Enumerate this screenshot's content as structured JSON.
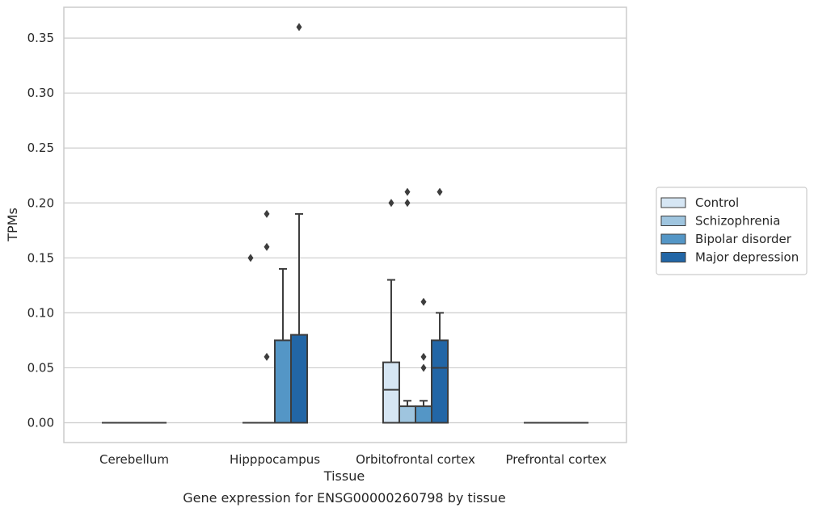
{
  "chart_data": {
    "type": "box",
    "title": "",
    "caption": "Gene expression for ENSG00000260798 by tissue",
    "xlabel": "Tissue",
    "ylabel": "TPMs",
    "ylim": [
      -0.018,
      0.378
    ],
    "yticks": [
      0.0,
      0.05,
      0.1,
      0.15,
      0.2,
      0.25,
      0.3,
      0.35
    ],
    "ytick_labels": [
      "0.00",
      "0.05",
      "0.10",
      "0.15",
      "0.20",
      "0.25",
      "0.30",
      "0.35"
    ],
    "grid": "horizontal",
    "legend_position": "right",
    "categories": [
      "Cerebellum",
      "Hipppocampus",
      "Orbitofrontal cortex",
      "Prefrontal cortex"
    ],
    "series": [
      {
        "name": "Control",
        "color": "#d6e6f4",
        "boxes": [
          {
            "q1": 0,
            "median": 0,
            "q3": 0,
            "whisker_low": 0,
            "whisker_high": 0,
            "outliers": []
          },
          {
            "q1": 0,
            "median": 0,
            "q3": 0,
            "whisker_low": 0,
            "whisker_high": 0,
            "outliers": [
              0.15
            ]
          },
          {
            "q1": 0,
            "median": 0.03,
            "q3": 0.055,
            "whisker_low": 0,
            "whisker_high": 0.13,
            "outliers": [
              0.2
            ]
          },
          {
            "q1": 0,
            "median": 0,
            "q3": 0,
            "whisker_low": 0,
            "whisker_high": 0,
            "outliers": []
          }
        ]
      },
      {
        "name": "Schizophrenia",
        "color": "#9fc5df",
        "boxes": [
          {
            "q1": 0,
            "median": 0,
            "q3": 0,
            "whisker_low": 0,
            "whisker_high": 0,
            "outliers": []
          },
          {
            "q1": 0,
            "median": 0,
            "q3": 0,
            "whisker_low": 0,
            "whisker_high": 0,
            "outliers": [
              0.06,
              0.16,
              0.19
            ]
          },
          {
            "q1": 0,
            "median": 0,
            "q3": 0.015,
            "whisker_low": 0,
            "whisker_high": 0.02,
            "outliers": [
              0.2,
              0.21
            ]
          },
          {
            "q1": 0,
            "median": 0,
            "q3": 0,
            "whisker_low": 0,
            "whisker_high": 0,
            "outliers": []
          }
        ]
      },
      {
        "name": "Bipolar disorder",
        "color": "#5496c6",
        "boxes": [
          {
            "q1": 0,
            "median": 0,
            "q3": 0,
            "whisker_low": 0,
            "whisker_high": 0,
            "outliers": []
          },
          {
            "q1": 0,
            "median": 0,
            "q3": 0.075,
            "whisker_low": 0,
            "whisker_high": 0.14,
            "outliers": []
          },
          {
            "q1": 0,
            "median": 0,
            "q3": 0.015,
            "whisker_low": 0,
            "whisker_high": 0.02,
            "outliers": [
              0.05,
              0.06,
              0.11
            ]
          },
          {
            "q1": 0,
            "median": 0,
            "q3": 0,
            "whisker_low": 0,
            "whisker_high": 0,
            "outliers": []
          }
        ]
      },
      {
        "name": "Major depression",
        "color": "#2266a6",
        "boxes": [
          {
            "q1": 0,
            "median": 0,
            "q3": 0,
            "whisker_low": 0,
            "whisker_high": 0,
            "outliers": []
          },
          {
            "q1": 0,
            "median": 0,
            "q3": 0.08,
            "whisker_low": 0,
            "whisker_high": 0.19,
            "outliers": [
              0.36
            ]
          },
          {
            "q1": 0,
            "median": 0.05,
            "q3": 0.075,
            "whisker_low": 0,
            "whisker_high": 0.1,
            "outliers": [
              0.21
            ]
          },
          {
            "q1": 0,
            "median": 0,
            "q3": 0,
            "whisker_low": 0,
            "whisker_high": 0,
            "outliers": []
          }
        ]
      }
    ],
    "colors": {
      "grid": "#cccccc",
      "frame": "#cccccc",
      "edge": "#3d3d3d",
      "text": "#262626"
    }
  }
}
